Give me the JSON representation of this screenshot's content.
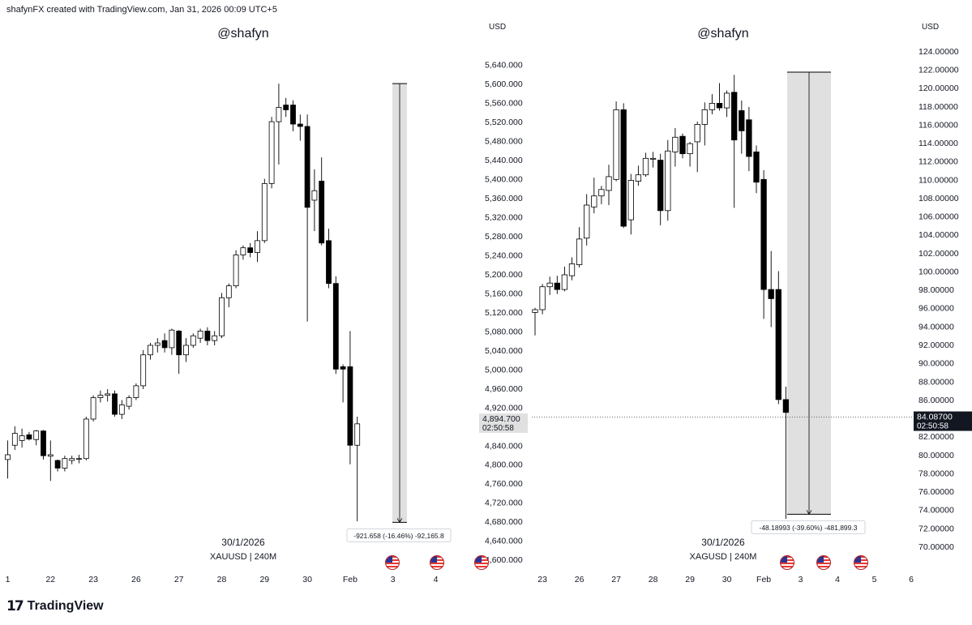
{
  "header": {
    "caption": "shafynFX created with TradingView.com, Jan 31, 2026 00:09 UTC+5"
  },
  "footer": {
    "brand": "TradingView",
    "logo_mark": "17"
  },
  "colors": {
    "up_fill": "#ffffff",
    "down_fill": "#000000",
    "wick": "#000000",
    "measure_fill": "#e0e0e0",
    "price_tag_bg": "#131722",
    "price_tag_bg_left": "#e0e0e0"
  },
  "chart_data": [
    {
      "type": "candlestick",
      "watermark": "@shafyn",
      "date_label": "30/1/2026",
      "symbol": "XAUUSD | 240M",
      "currency": "USD",
      "ylim": [
        4590,
        5665
      ],
      "y_ticks": [
        "5,640.000",
        "5,600.000",
        "5,560.000",
        "5,520.000",
        "5,480.000",
        "5,440.000",
        "5,400.000",
        "5,360.000",
        "5,320.000",
        "5,280.000",
        "5,240.000",
        "5,200.000",
        "5,160.000",
        "5,120.000",
        "5,080.000",
        "5,040.000",
        "5,000.000",
        "4,960.000",
        "4,920.000",
        "4,880.000",
        "4,840.000",
        "4,800.000",
        "4,760.000",
        "4,720.000",
        "4,680.000",
        "4,640.000",
        "4,600.000"
      ],
      "y_tick_values": [
        5640,
        5600,
        5560,
        5520,
        5480,
        5440,
        5400,
        5360,
        5320,
        5280,
        5240,
        5200,
        5160,
        5120,
        5080,
        5040,
        5000,
        4960,
        4920,
        4880,
        4840,
        4800,
        4760,
        4720,
        4680,
        4640,
        4600
      ],
      "x_ticks": [
        {
          "label": "1",
          "i": 0
        },
        {
          "label": "22",
          "i": 6
        },
        {
          "label": "23",
          "i": 12
        },
        {
          "label": "26",
          "i": 18
        },
        {
          "label": "27",
          "i": 24
        },
        {
          "label": "28",
          "i": 30
        },
        {
          "label": "29",
          "i": 36
        },
        {
          "label": "30",
          "i": 42
        },
        {
          "label": "Feb",
          "i": 48
        },
        {
          "label": "3",
          "i": 54
        },
        {
          "label": "4",
          "i": 60
        }
      ],
      "current_price": {
        "value": 4894.7,
        "label": "4,894.700",
        "timer": "02:50:58"
      },
      "measure": {
        "label": "-921.658 (-16.46%) -92,165.8",
        "from": 5600,
        "to": 4678
      },
      "candles": [
        {
          "o": 4810,
          "h": 4850,
          "l": 4770,
          "c": 4820
        },
        {
          "o": 4840,
          "h": 4880,
          "l": 4830,
          "c": 4865
        },
        {
          "o": 4850,
          "h": 4875,
          "l": 4835,
          "c": 4860
        },
        {
          "o": 4862,
          "h": 4868,
          "l": 4850,
          "c": 4853
        },
        {
          "o": 4852,
          "h": 4872,
          "l": 4840,
          "c": 4870
        },
        {
          "o": 4870,
          "h": 4872,
          "l": 4810,
          "c": 4818
        },
        {
          "o": 4817,
          "h": 4850,
          "l": 4765,
          "c": 4820
        },
        {
          "o": 4808,
          "h": 4810,
          "l": 4785,
          "c": 4792
        },
        {
          "o": 4792,
          "h": 4818,
          "l": 4785,
          "c": 4812
        },
        {
          "o": 4808,
          "h": 4818,
          "l": 4800,
          "c": 4812
        },
        {
          "o": 4812,
          "h": 4820,
          "l": 4802,
          "c": 4812
        },
        {
          "o": 4812,
          "h": 4900,
          "l": 4808,
          "c": 4895
        },
        {
          "o": 4895,
          "h": 4945,
          "l": 4890,
          "c": 4940
        },
        {
          "o": 4940,
          "h": 4955,
          "l": 4930,
          "c": 4945
        },
        {
          "o": 4945,
          "h": 4958,
          "l": 4932,
          "c": 4948
        },
        {
          "o": 4948,
          "h": 4955,
          "l": 4900,
          "c": 4905
        },
        {
          "o": 4905,
          "h": 4935,
          "l": 4895,
          "c": 4925
        },
        {
          "o": 4922,
          "h": 4945,
          "l": 4915,
          "c": 4940
        },
        {
          "o": 4940,
          "h": 4970,
          "l": 4935,
          "c": 4965
        },
        {
          "o": 4965,
          "h": 5040,
          "l": 4958,
          "c": 5030
        },
        {
          "o": 5030,
          "h": 5055,
          "l": 5020,
          "c": 5050
        },
        {
          "o": 5050,
          "h": 5065,
          "l": 5035,
          "c": 5055
        },
        {
          "o": 5060,
          "h": 5075,
          "l": 5035,
          "c": 5045
        },
        {
          "o": 5045,
          "h": 5085,
          "l": 5030,
          "c": 5082
        },
        {
          "o": 5080,
          "h": 5082,
          "l": 4990,
          "c": 5030
        },
        {
          "o": 5030,
          "h": 5065,
          "l": 5015,
          "c": 5050
        },
        {
          "o": 5050,
          "h": 5075,
          "l": 5045,
          "c": 5070
        },
        {
          "o": 5065,
          "h": 5085,
          "l": 5055,
          "c": 5080
        },
        {
          "o": 5080,
          "h": 5088,
          "l": 5050,
          "c": 5060
        },
        {
          "o": 5060,
          "h": 5080,
          "l": 5050,
          "c": 5070
        },
        {
          "o": 5070,
          "h": 5160,
          "l": 5065,
          "c": 5150
        },
        {
          "o": 5150,
          "h": 5180,
          "l": 5130,
          "c": 5175
        },
        {
          "o": 5175,
          "h": 5250,
          "l": 5170,
          "c": 5240
        },
        {
          "o": 5240,
          "h": 5260,
          "l": 5230,
          "c": 5255
        },
        {
          "o": 5255,
          "h": 5265,
          "l": 5235,
          "c": 5245
        },
        {
          "o": 5245,
          "h": 5290,
          "l": 5225,
          "c": 5270
        },
        {
          "o": 5270,
          "h": 5400,
          "l": 5265,
          "c": 5390
        },
        {
          "o": 5390,
          "h": 5530,
          "l": 5380,
          "c": 5520
        },
        {
          "o": 5520,
          "h": 5600,
          "l": 5430,
          "c": 5550
        },
        {
          "o": 5555,
          "h": 5570,
          "l": 5530,
          "c": 5545
        },
        {
          "o": 5555,
          "h": 5565,
          "l": 5500,
          "c": 5515
        },
        {
          "o": 5515,
          "h": 5535,
          "l": 5480,
          "c": 5510
        },
        {
          "o": 5510,
          "h": 5535,
          "l": 5100,
          "c": 5340
        },
        {
          "o": 5355,
          "h": 5420,
          "l": 5290,
          "c": 5375
        },
        {
          "o": 5395,
          "h": 5445,
          "l": 5260,
          "c": 5265
        },
        {
          "o": 5270,
          "h": 5295,
          "l": 5170,
          "c": 5180
        },
        {
          "o": 5180,
          "h": 5195,
          "l": 4990,
          "c": 5000
        },
        {
          "o": 5005,
          "h": 5010,
          "l": 4930,
          "c": 5000
        },
        {
          "o": 5005,
          "h": 5080,
          "l": 4800,
          "c": 4840
        },
        {
          "o": 4840,
          "h": 4900,
          "l": 4680,
          "c": 4885
        }
      ]
    },
    {
      "type": "candlestick",
      "watermark": "@shafyn",
      "date_label": "30/1/2026",
      "symbol": "XAGUSD | 240M",
      "currency": "USD",
      "ylim": [
        69.2,
        124.7
      ],
      "y_ticks": [
        "124.00000",
        "122.00000",
        "120.00000",
        "118.00000",
        "116.00000",
        "114.00000",
        "112.00000",
        "110.00000",
        "108.00000",
        "106.00000",
        "104.00000",
        "102.00000",
        "100.00000",
        "98.00000",
        "96.00000",
        "94.00000",
        "92.00000",
        "90.00000",
        "88.00000",
        "86.00000",
        "82.00000",
        "80.00000",
        "78.00000",
        "76.00000",
        "74.00000",
        "72.00000",
        "70.00000"
      ],
      "y_tick_values": [
        124,
        122,
        120,
        118,
        116,
        114,
        112,
        110,
        108,
        106,
        104,
        102,
        100,
        98,
        96,
        94,
        92,
        90,
        88,
        86,
        82,
        80,
        78,
        76,
        74,
        72,
        70
      ],
      "x_ticks": [
        {
          "label": "23",
          "i": 1
        },
        {
          "label": "26",
          "i": 6
        },
        {
          "label": "27",
          "i": 11
        },
        {
          "label": "28",
          "i": 16
        },
        {
          "label": "29",
          "i": 21
        },
        {
          "label": "30",
          "i": 26
        },
        {
          "label": "Feb",
          "i": 31
        },
        {
          "label": "3",
          "i": 36
        },
        {
          "label": "4",
          "i": 41
        },
        {
          "label": "5",
          "i": 46
        },
        {
          "label": "6",
          "i": 51
        }
      ],
      "current_price": {
        "value": 84.087,
        "label": "84.08700",
        "timer": "02:50:58"
      },
      "measure": {
        "label": "-48.18993 (-39.60%) -481,899.3",
        "from": 121.7,
        "to": 73.5
      },
      "candles": [
        {
          "o": 95.5,
          "h": 96.0,
          "l": 93.0,
          "c": 95.8
        },
        {
          "o": 95.8,
          "h": 98.6,
          "l": 95.3,
          "c": 98.3
        },
        {
          "o": 98.3,
          "h": 99.4,
          "l": 97.4,
          "c": 98.7
        },
        {
          "o": 98.7,
          "h": 99.5,
          "l": 97.5,
          "c": 98.0
        },
        {
          "o": 98.0,
          "h": 100.5,
          "l": 97.8,
          "c": 99.6
        },
        {
          "o": 99.5,
          "h": 101.5,
          "l": 99.0,
          "c": 100.8
        },
        {
          "o": 100.7,
          "h": 104.8,
          "l": 100.4,
          "c": 103.5
        },
        {
          "o": 103.6,
          "h": 108.4,
          "l": 102.8,
          "c": 107.2
        },
        {
          "o": 107.0,
          "h": 110.2,
          "l": 106.3,
          "c": 108.2
        },
        {
          "o": 108.2,
          "h": 109.3,
          "l": 107.3,
          "c": 108.9
        },
        {
          "o": 108.8,
          "h": 111.6,
          "l": 107.2,
          "c": 110.3
        },
        {
          "o": 110.0,
          "h": 118.5,
          "l": 109.8,
          "c": 117.6
        },
        {
          "o": 117.6,
          "h": 118.3,
          "l": 104.7,
          "c": 104.9
        },
        {
          "o": 105.6,
          "h": 110.6,
          "l": 104.0,
          "c": 109.9
        },
        {
          "o": 109.8,
          "h": 111.5,
          "l": 109.3,
          "c": 110.5
        },
        {
          "o": 110.5,
          "h": 112.9,
          "l": 110.3,
          "c": 112.3
        },
        {
          "o": 112.2,
          "h": 113.0,
          "l": 111.3,
          "c": 112.3
        },
        {
          "o": 112.1,
          "h": 112.8,
          "l": 105.0,
          "c": 106.6
        },
        {
          "o": 106.6,
          "h": 114.3,
          "l": 105.5,
          "c": 113.1
        },
        {
          "o": 113.0,
          "h": 115.6,
          "l": 111.4,
          "c": 114.6
        },
        {
          "o": 114.7,
          "h": 115.0,
          "l": 112.3,
          "c": 112.8
        },
        {
          "o": 112.8,
          "h": 114.1,
          "l": 111.4,
          "c": 113.9
        },
        {
          "o": 114.1,
          "h": 116.3,
          "l": 110.8,
          "c": 116.0
        },
        {
          "o": 116.0,
          "h": 118.4,
          "l": 113.7,
          "c": 117.6
        },
        {
          "o": 117.6,
          "h": 119.3,
          "l": 117.1,
          "c": 118.3
        },
        {
          "o": 118.3,
          "h": 120.5,
          "l": 117.5,
          "c": 117.8
        },
        {
          "o": 117.8,
          "h": 119.7,
          "l": 116.8,
          "c": 119.4
        },
        {
          "o": 119.5,
          "h": 121.4,
          "l": 106.9,
          "c": 114.3
        },
        {
          "o": 117.5,
          "h": 118.6,
          "l": 112.8,
          "c": 115.3
        },
        {
          "o": 116.5,
          "h": 117.9,
          "l": 110.9,
          "c": 112.5
        },
        {
          "o": 113.0,
          "h": 113.7,
          "l": 108.5,
          "c": 109.7
        },
        {
          "o": 110.0,
          "h": 111.0,
          "l": 94.8,
          "c": 98.0
        },
        {
          "o": 98.0,
          "h": 102.2,
          "l": 93.9,
          "c": 97.0
        },
        {
          "o": 98.0,
          "h": 100.0,
          "l": 85.5,
          "c": 86.0
        },
        {
          "o": 86.0,
          "h": 87.4,
          "l": 73.0,
          "c": 84.6
        }
      ]
    }
  ]
}
